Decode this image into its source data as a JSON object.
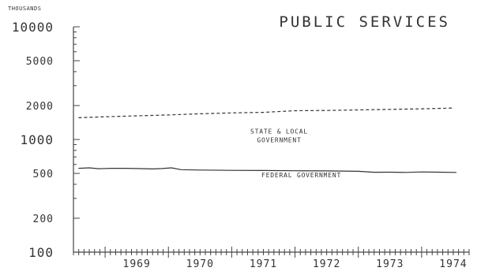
{
  "chart_data": {
    "type": "line",
    "title": "PUBLIC SERVICES",
    "y_unit_label": "THOUSANDS",
    "y_scale": "log",
    "ylim": [
      100,
      10000
    ],
    "y_ticks": [
      {
        "value": 10000,
        "label": "10000",
        "major": true
      },
      {
        "value": 5000,
        "label": "5000",
        "major": false
      },
      {
        "value": 2000,
        "label": "2000",
        "major": false
      },
      {
        "value": 1000,
        "label": "1000",
        "major": true
      },
      {
        "value": 500,
        "label": "500",
        "major": false
      },
      {
        "value": 200,
        "label": "200",
        "major": false
      },
      {
        "value": 100,
        "label": "100",
        "major": true
      }
    ],
    "xlim": [
      1968.5,
      1974.75
    ],
    "x_ticks": [
      "1969",
      "1970",
      "1971",
      "1972",
      "1973",
      "1974"
    ],
    "grid": false,
    "series": [
      {
        "name": "STATE & LOCAL GOVERNMENT",
        "style": "dashed",
        "x": [
          1968.58,
          1969.0,
          1969.5,
          1970.0,
          1970.5,
          1971.0,
          1971.5,
          1972.0,
          1972.5,
          1973.0,
          1973.5,
          1974.0,
          1974.5
        ],
        "y": [
          1560,
          1590,
          1620,
          1650,
          1690,
          1720,
          1740,
          1800,
          1810,
          1830,
          1850,
          1870,
          1900
        ]
      },
      {
        "name": "FEDERAL GOVERNMENT",
        "style": "solid",
        "x": [
          1968.58,
          1968.75,
          1968.9,
          1969.1,
          1969.3,
          1969.5,
          1969.75,
          1969.9,
          1970.05,
          1970.2,
          1970.5,
          1971.0,
          1971.5,
          1972.0,
          1972.5,
          1973.0,
          1973.25,
          1973.5,
          1973.75,
          1974.0,
          1974.25,
          1974.55
        ],
        "y": [
          555,
          560,
          550,
          555,
          555,
          552,
          548,
          552,
          560,
          540,
          535,
          532,
          530,
          528,
          526,
          522,
          512,
          513,
          510,
          515,
          513,
          510
        ]
      }
    ],
    "annotations": [
      {
        "lines": [
          "STATE & LOCAL",
          "GOVERNMENT"
        ],
        "x": 1971.75,
        "y": 1130
      },
      {
        "lines": [
          "FEDERAL GOVERNMENT"
        ],
        "x": 1972.1,
        "y": 460
      }
    ]
  }
}
